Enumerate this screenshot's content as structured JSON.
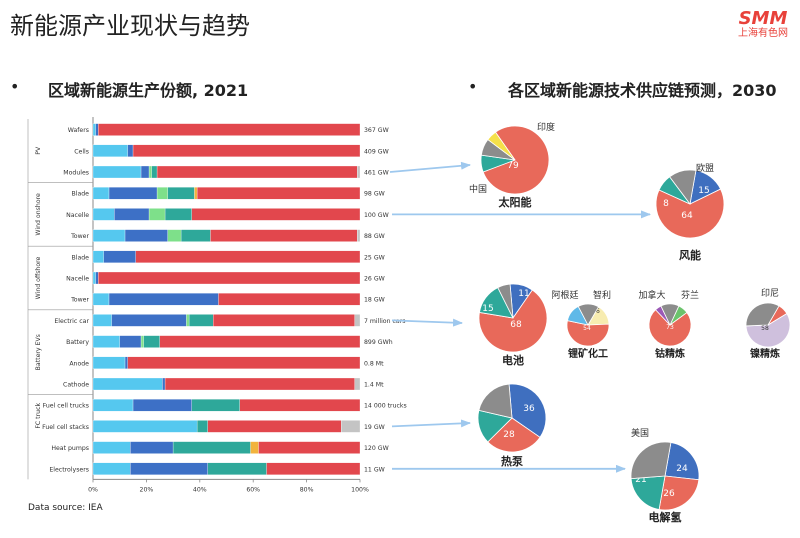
{
  "page": {
    "title": "新能源产业现状与趋势",
    "logo_mark": "SMM",
    "logo_sub": "上海有色网",
    "bullet": "•",
    "left_title": "区域新能源生产份额, 2021",
    "right_title": "各区域新能源技术供应链预测，2030",
    "source": "Data source: IEA"
  },
  "colors": {
    "c1": "#55c8ef",
    "c2": "#3d70c6",
    "c3": "#7ee08a",
    "c4": "#2ea89a",
    "c5": "#f2b33d",
    "c6": "#e2474d",
    "c7": "#c4c4c4",
    "pie_gray": "#8c8c8c",
    "pie_red": "#e8695a",
    "pie_blue": "#3f6fbf",
    "pie_teal": "#2ea89a",
    "pie_yellow": "#f5e04a",
    "pie_lightblue": "#5fb9e8",
    "pie_cream": "#f7ecb0",
    "pie_purple": "#9b59b6",
    "pie_lavender": "#cfc0dd",
    "pie_green": "#6cc36c",
    "arrow": "#9ec8ee"
  },
  "chart_data": [
    {
      "type": "bar",
      "orientation": "horizontal-stacked-100",
      "title": "区域新能源生产份额, 2021",
      "xlim": [
        0,
        100
      ],
      "x_ticks": [
        "0%",
        "20%",
        "40%",
        "60%",
        "80%",
        "100%"
      ],
      "groups": [
        {
          "name": "PV",
          "items": [
            0,
            1,
            2
          ]
        },
        {
          "name": "Wind onshore",
          "items": [
            3,
            4,
            5
          ]
        },
        {
          "name": "Wind offshore",
          "items": [
            6,
            7,
            8
          ]
        },
        {
          "name": "Battery EVs",
          "items": [
            9,
            10,
            11,
            12
          ]
        },
        {
          "name": "FC truck",
          "items": [
            13,
            14
          ]
        }
      ],
      "categories": [
        "Wafers",
        "Cells",
        "Modules",
        "Blade",
        "Nacelle",
        "Tower",
        "Blade",
        "Nacelle",
        "Tower",
        "Electric car",
        "Battery",
        "Anode",
        "Cathode",
        "Fuel cell trucks",
        "Fuel cell stacks",
        "Heat pumps",
        "Electrolysers"
      ],
      "totals": [
        "367 GW",
        "409 GW",
        "461 GW",
        "98 GW",
        "100 GW",
        "88 GW",
        "25 GW",
        "26 GW",
        "18 GW",
        "7 million cars",
        "899 GWh",
        "0.8 Mt",
        "1.4 Mt",
        "14 000 trucks",
        "19 GW",
        "120 GW",
        "11 GW"
      ],
      "series_colors": [
        "c1",
        "c2",
        "c3",
        "c4",
        "c5",
        "c6",
        "c7"
      ],
      "rows": [
        [
          1,
          1,
          0,
          0,
          0,
          98,
          0
        ],
        [
          13,
          2,
          0,
          0,
          0,
          85,
          0
        ],
        [
          18,
          3,
          1,
          2,
          0,
          75,
          1
        ],
        [
          6,
          18,
          4,
          10,
          1,
          61,
          0
        ],
        [
          8,
          13,
          6,
          10,
          0,
          63,
          0
        ],
        [
          12,
          16,
          5,
          11,
          0,
          55,
          1
        ],
        [
          4,
          12,
          0,
          0,
          0,
          84,
          0
        ],
        [
          1,
          1,
          0,
          0,
          0,
          98,
          0
        ],
        [
          6,
          41,
          0,
          0,
          0,
          53,
          0
        ],
        [
          7,
          28,
          1,
          9,
          0,
          53,
          2
        ],
        [
          10,
          8,
          1,
          6,
          0,
          75,
          0
        ],
        [
          12,
          1,
          0,
          0,
          0,
          87,
          0
        ],
        [
          26,
          1,
          0,
          0,
          0,
          71,
          2
        ],
        [
          15,
          22,
          0,
          18,
          0,
          45,
          0
        ],
        [
          39,
          0,
          0,
          4,
          0,
          50,
          7
        ],
        [
          14,
          16,
          0,
          29,
          3,
          38,
          0
        ],
        [
          14,
          29,
          0,
          22,
          0,
          35,
          0
        ]
      ]
    },
    {
      "type": "pie",
      "title": "各区域新能源技术供应链预测，2030",
      "pies": [
        {
          "label": "太阳能",
          "slices": [
            {
              "name": "中国",
              "value": 79,
              "color": "pie_red",
              "shown": "79"
            },
            {
              "name": "",
              "value": 8,
              "color": "pie_teal",
              "shown": ""
            },
            {
              "name": "",
              "value": 8,
              "color": "pie_gray",
              "shown": ""
            },
            {
              "name": "印度",
              "value": 5,
              "color": "pie_yellow",
              "shown": ""
            }
          ],
          "callouts": [
            "印度",
            "中国"
          ]
        },
        {
          "label": "风能",
          "slices": [
            {
              "name": "",
              "value": 15,
              "color": "pie_blue",
              "shown": "15"
            },
            {
              "name": "",
              "value": 64,
              "color": "pie_red",
              "shown": "64"
            },
            {
              "name": "",
              "value": 8,
              "color": "pie_teal",
              "shown": "8"
            },
            {
              "name": "",
              "value": 13,
              "color": "pie_gray",
              "shown": ""
            }
          ],
          "callouts": [
            "欧盟"
          ]
        },
        {
          "label": "电池",
          "slices": [
            {
              "name": "",
              "value": 11,
              "color": "pie_blue",
              "shown": "11"
            },
            {
              "name": "",
              "value": 68,
              "color": "pie_red",
              "shown": "68"
            },
            {
              "name": "",
              "value": 15,
              "color": "pie_teal",
              "shown": "15"
            },
            {
              "name": "",
              "value": 6,
              "color": "pie_gray",
              "shown": ""
            }
          ],
          "callouts": []
        },
        {
          "label": "锂矿化工",
          "slices": [
            {
              "name": "智利",
              "value": 16,
              "color": "pie_cream",
              "shown": "16"
            },
            {
              "name": "",
              "value": 54,
              "color": "pie_red",
              "shown": "54"
            },
            {
              "name": "阿根廷",
              "value": 14,
              "color": "pie_lightblue",
              "shown": ""
            },
            {
              "name": "",
              "value": 16,
              "color": "pie_gray",
              "shown": ""
            }
          ],
          "callouts": [
            "阿根廷",
            "智利"
          ]
        },
        {
          "label": "钴精炼",
          "slices": [
            {
              "name": "芬兰",
              "value": 8,
              "color": "pie_green",
              "shown": ""
            },
            {
              "name": "",
              "value": 73,
              "color": "pie_red",
              "shown": "73"
            },
            {
              "name": "加拿大",
              "value": 5,
              "color": "pie_purple",
              "shown": ""
            },
            {
              "name": "",
              "value": 14,
              "color": "pie_gray",
              "shown": ""
            }
          ],
          "callouts": [
            "加拿大",
            "芬兰"
          ]
        },
        {
          "label": "镍精炼",
          "slices": [
            {
              "name": "印尼",
              "value": 8,
              "color": "pie_red",
              "shown": ""
            },
            {
              "name": "",
              "value": 58,
              "color": "pie_lavender",
              "shown": "58"
            },
            {
              "name": "",
              "value": 34,
              "color": "pie_gray",
              "shown": ""
            }
          ],
          "callouts": [
            "印尼"
          ]
        },
        {
          "label": "热泵",
          "slices": [
            {
              "name": "",
              "value": 36,
              "color": "pie_blue",
              "shown": "36"
            },
            {
              "name": "",
              "value": 28,
              "color": "pie_red",
              "shown": "28"
            },
            {
              "name": "",
              "value": 16,
              "color": "pie_teal",
              "shown": ""
            },
            {
              "name": "",
              "value": 20,
              "color": "pie_gray",
              "shown": ""
            }
          ],
          "callouts": []
        },
        {
          "label": "电解氢",
          "slices": [
            {
              "name": "",
              "value": 24,
              "color": "pie_blue",
              "shown": "24"
            },
            {
              "name": "",
              "value": 26,
              "color": "pie_red",
              "shown": "26"
            },
            {
              "name": "",
              "value": 21,
              "color": "pie_teal",
              "shown": "21"
            },
            {
              "name": "美国",
              "value": 29,
              "color": "pie_gray",
              "shown": ""
            }
          ],
          "callouts": [
            "美国"
          ]
        }
      ]
    }
  ]
}
